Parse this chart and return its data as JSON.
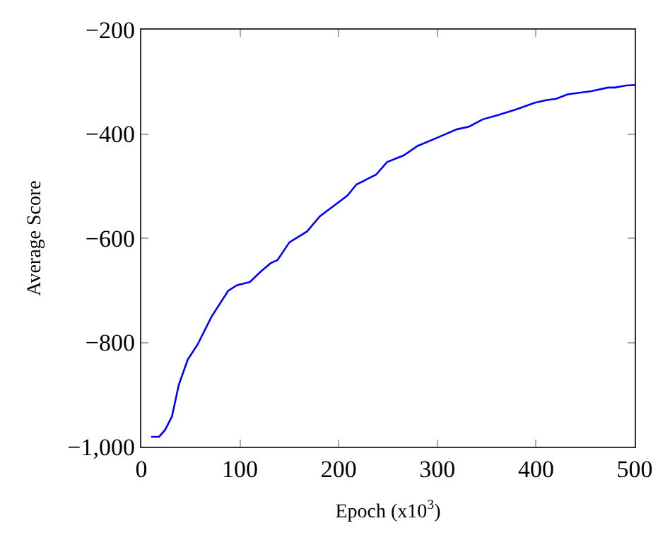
{
  "chart_data": {
    "type": "line",
    "xlabel": "Epoch (x10$^{3}$)",
    "ylabel": "Average Score",
    "x": [
      10,
      18,
      24,
      31,
      38,
      47,
      57,
      71,
      88,
      97,
      110,
      121,
      131,
      138,
      150,
      168,
      181,
      209,
      218,
      238,
      249,
      266,
      280,
      299,
      320,
      332,
      346,
      361,
      380,
      399,
      411,
      420,
      432,
      456,
      473,
      480,
      491,
      500
    ],
    "series": [
      {
        "color": "#0000ff",
        "values": [
          -981,
          -981,
          -968,
          -942,
          -881,
          -833,
          -804,
          -751,
          -701,
          -690,
          -684,
          -664,
          -648,
          -642,
          -608,
          -587,
          -558,
          -518,
          -497,
          -478,
          -454,
          -441,
          -423,
          -408,
          -391,
          -386,
          -372,
          -364,
          -353,
          -340,
          -335,
          -333,
          -324,
          -318,
          -311,
          -311,
          -307,
          -306
        ]
      }
    ],
    "xlim": [
      0,
      500
    ],
    "xticks": [
      0,
      100,
      200,
      300,
      400,
      500
    ],
    "ylim": [
      -1000,
      -200
    ],
    "yticks": [
      {
        "value": -1000,
        "label": "−1,000"
      },
      {
        "value": -800,
        "label": "−800"
      },
      {
        "value": -600,
        "label": "−600"
      },
      {
        "value": -400,
        "label": "−400"
      },
      {
        "value": -200,
        "label": "−200"
      }
    ],
    "marker": "none",
    "line_style": "solid"
  }
}
